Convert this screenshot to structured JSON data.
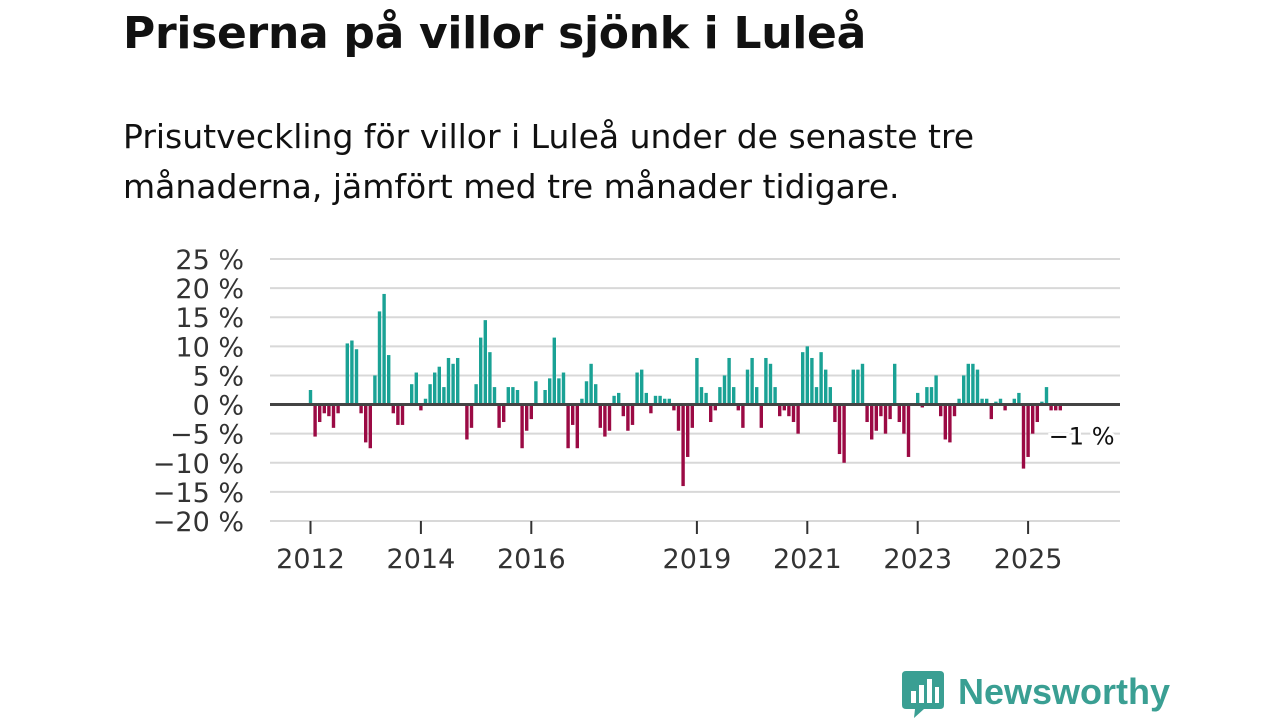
{
  "title": "Priserna på villor sjönk i Luleå",
  "subtitle": "Prisutveckling för villor i Luleå under de senaste tre månaderna, jämfört med tre månader tidigare.",
  "brand": {
    "name": "Newsworthy",
    "color": "#3a9f93",
    "icon": "newsworthy-logo-icon"
  },
  "colors": {
    "positive": "#1aa295",
    "negative": "#9b0a44",
    "zero_line": "#444444",
    "grid": "#d8d8d8"
  },
  "chart_data": {
    "type": "bar",
    "title": "Priserna på villor sjönk i Luleå",
    "xlabel": "",
    "ylabel": "",
    "ylim": [
      -20,
      25
    ],
    "y_ticks": [
      25,
      20,
      15,
      10,
      5,
      0,
      -5,
      -10,
      -15,
      -20
    ],
    "y_tick_labels": [
      "25 %",
      "20 %",
      "15 %",
      "10 %",
      "5 %",
      "0 %",
      "−5 %",
      "−10 %",
      "−15 %",
      "−20 %"
    ],
    "x_tick_labels": [
      "2012",
      "2014",
      "2016",
      "2019",
      "2021",
      "2023",
      "2025"
    ],
    "x_tick_months": [
      0,
      24,
      48,
      84,
      108,
      132,
      156
    ],
    "start": "2012-01",
    "annotation": {
      "label": "−1 %",
      "month_index": 167,
      "value": -1
    },
    "values": [
      2.5,
      -5.5,
      -3,
      -1.5,
      -2,
      -4,
      -1.5,
      0,
      10.5,
      11,
      9.5,
      -1.5,
      -6.5,
      -7.5,
      5,
      16,
      19,
      8.5,
      -1.5,
      -3.5,
      -3.5,
      0,
      3.5,
      5.5,
      -1,
      1,
      3.5,
      5.5,
      6.5,
      3,
      8,
      7,
      8,
      0,
      -6,
      -4,
      3.5,
      11.5,
      14.5,
      9,
      3,
      -4,
      -3,
      3,
      3,
      2.5,
      -7.5,
      -4.5,
      -2.5,
      4,
      0,
      2.5,
      4.5,
      11.5,
      4.5,
      5.5,
      -7.5,
      -3.5,
      -7.5,
      1,
      4,
      7,
      3.5,
      -4,
      -5.5,
      -4.5,
      1.5,
      2,
      -2,
      -4.5,
      -3.5,
      5.5,
      6,
      2,
      -1.5,
      1.5,
      1.5,
      1,
      1,
      -1,
      -4.5,
      -14,
      -9,
      -4,
      8,
      3,
      2,
      -3,
      -1,
      3,
      5,
      8,
      3,
      -1,
      -4,
      6,
      8,
      3,
      -4,
      8,
      7,
      3,
      -2,
      -1,
      -2,
      -3,
      -5,
      9,
      10,
      8,
      3,
      9,
      6,
      3,
      -3,
      -8.5,
      -10,
      0,
      6,
      6,
      7,
      -3,
      -6,
      -4.5,
      -2,
      -5,
      -2.5,
      7,
      -3,
      -5,
      -9,
      0,
      2,
      -0.5,
      3,
      3,
      5,
      -2,
      -6,
      -6.5,
      -2,
      1,
      5,
      7,
      7,
      6,
      1,
      1,
      -2.5,
      0.5,
      1,
      -1,
      0,
      1,
      2,
      -11,
      -9,
      -5,
      -3,
      0.5,
      3,
      -1,
      -1,
      -1
    ]
  }
}
